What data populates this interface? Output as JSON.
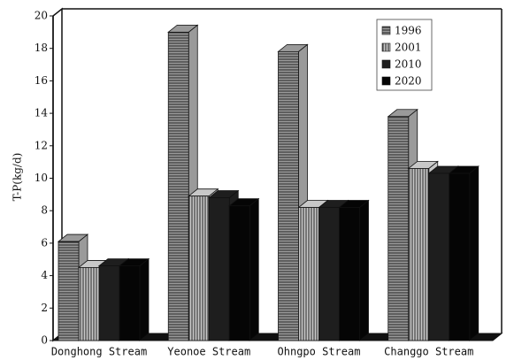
{
  "chart_data": {
    "type": "bar3d",
    "y_label": "T-P(kg/d)",
    "categories": [
      "Donghong Stream",
      "Yeonoe Stream",
      "Ohngpo Stream",
      "Changgo Stream"
    ],
    "series": [
      {
        "name": "1996",
        "color": "#9a9a9a",
        "values": [
          6.1,
          19.0,
          17.8,
          13.8
        ]
      },
      {
        "name": "2001",
        "color": "#c8c8c8",
        "values": [
          4.5,
          8.9,
          8.2,
          10.6
        ]
      },
      {
        "name": "2010",
        "color": "#1e1e1e",
        "values": [
          4.6,
          8.8,
          8.2,
          10.3
        ]
      },
      {
        "name": "2020",
        "color": "#050505",
        "values": [
          4.6,
          8.3,
          8.2,
          10.3
        ]
      }
    ],
    "ylim": [
      0,
      20
    ],
    "yticks": [
      0,
      2,
      4,
      6,
      8,
      10,
      12,
      14,
      16,
      18,
      20
    ],
    "legend": "upper right"
  }
}
